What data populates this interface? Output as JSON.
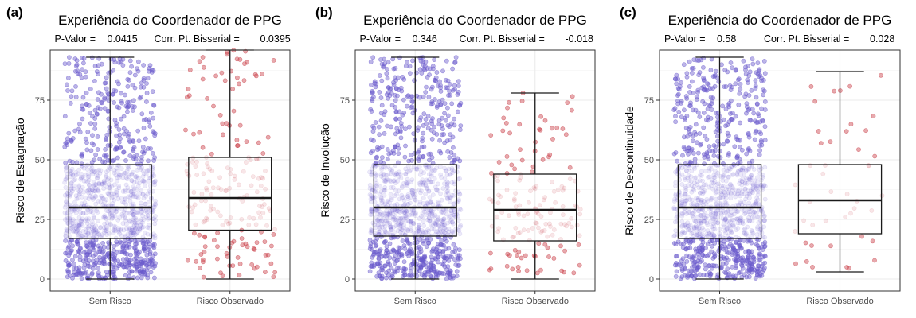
{
  "chart_data": [
    {
      "type": "box",
      "panel_label": "(a)",
      "title": "Experiência do Coordenador de PPG",
      "stats": {
        "pvalue_label": "P-Valor =",
        "pvalue": "0.0415",
        "corr_label": "Corr. Pt. Bisserial =",
        "corr": "0.0395"
      },
      "xlabel": "",
      "ylabel": "Risco de Estagnação",
      "categories": [
        "Sem Risco",
        "Risco Observado"
      ],
      "yticks": [
        0,
        25,
        50,
        75
      ],
      "ylim": [
        -5,
        96
      ],
      "grid": true,
      "boxes": [
        {
          "name": "Sem Risco",
          "min": 0,
          "q1": 17,
          "median": 30,
          "q3": 48,
          "max": 93,
          "n": 1200,
          "color": "#6a5acd"
        },
        {
          "name": "Risco Observado",
          "min": 0,
          "q1": 20.5,
          "median": 34,
          "q3": 51,
          "max": 96,
          "n": 190,
          "color": "#c9404a"
        }
      ]
    },
    {
      "type": "box",
      "panel_label": "(b)",
      "title": "Experiência do Coordenador de PPG",
      "stats": {
        "pvalue_label": "P-Valor =",
        "pvalue": "0.346",
        "corr_label": "Corr. Pt. Bisserial =",
        "corr": "-0.018"
      },
      "xlabel": "",
      "ylabel": "Risco de Involução",
      "categories": [
        "Sem Risco",
        "Risco Observado"
      ],
      "yticks": [
        0,
        25,
        50,
        75
      ],
      "ylim": [
        -5,
        96
      ],
      "grid": true,
      "boxes": [
        {
          "name": "Sem Risco",
          "min": 0,
          "q1": 18,
          "median": 30,
          "q3": 48,
          "max": 93,
          "n": 1200,
          "color": "#6a5acd"
        },
        {
          "name": "Risco Observado",
          "min": 0,
          "q1": 16,
          "median": 29,
          "q3": 44,
          "max": 78,
          "n": 160,
          "color": "#c9404a"
        }
      ]
    },
    {
      "type": "box",
      "panel_label": "(c)",
      "title": "Experiência do Coordenador de PPG",
      "stats": {
        "pvalue_label": "P-Valor =",
        "pvalue": "0.58",
        "corr_label": "Corr. Pt. Bisserial =",
        "corr": "0.028"
      },
      "xlabel": "",
      "ylabel": "Risco de Descontinuidade",
      "categories": [
        "Sem Risco",
        "Risco Observado"
      ],
      "yticks": [
        0,
        25,
        50,
        75
      ],
      "ylim": [
        -5,
        96
      ],
      "grid": true,
      "boxes": [
        {
          "name": "Sem Risco",
          "min": 0,
          "q1": 17,
          "median": 30,
          "q3": 48,
          "max": 93,
          "n": 1200,
          "color": "#6a5acd"
        },
        {
          "name": "Risco Observado",
          "min": 3,
          "q1": 19,
          "median": 33,
          "q3": 48,
          "max": 87,
          "n": 45,
          "color": "#c9404a"
        }
      ]
    }
  ]
}
